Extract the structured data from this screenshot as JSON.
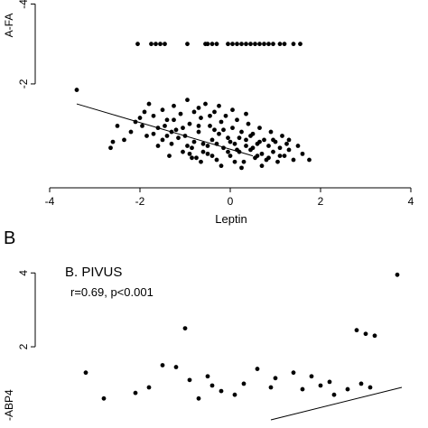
{
  "chart_data": [
    {
      "type": "scatter",
      "panel_letter": "",
      "title": "",
      "annotation": "",
      "xlabel": "Leptin",
      "ylabel": "A-FA",
      "xlim": [
        -4,
        4
      ],
      "ylim": [
        -4.1,
        0.6
      ],
      "xticks": [
        "-4",
        "-2",
        "0",
        "2",
        "4"
      ],
      "yticks": [
        {
          "value": -2,
          "label": "-2"
        },
        {
          "value": -4,
          "label": "-4"
        }
      ],
      "grid": false,
      "fit_line": {
        "x": [
          -3.4,
          0.5
        ],
        "y": [
          -1.5,
          -0.2
        ]
      },
      "points": [
        [
          -3.4,
          -1.85
        ],
        [
          -2.5,
          -0.95
        ],
        [
          -2.6,
          -0.55
        ],
        [
          -2.65,
          -0.4
        ],
        [
          -2.2,
          -0.8
        ],
        [
          -2.1,
          -1.05
        ],
        [
          -1.9,
          -1.3
        ],
        [
          -1.85,
          -0.7
        ],
        [
          -1.8,
          -1.5
        ],
        [
          -1.7,
          -1.2
        ],
        [
          -1.6,
          -0.9
        ],
        [
          -1.5,
          -1.35
        ],
        [
          -1.5,
          -0.6
        ],
        [
          -1.4,
          -1.1
        ],
        [
          -1.3,
          -0.5
        ],
        [
          -1.25,
          -1.45
        ],
        [
          -1.2,
          -0.85
        ],
        [
          -1.1,
          -1.25
        ],
        [
          -1.05,
          -0.3
        ],
        [
          -1.0,
          -0.7
        ],
        [
          -0.95,
          -1.6
        ],
        [
          -0.9,
          -1.0
        ],
        [
          -0.85,
          -0.4
        ],
        [
          -0.8,
          -1.3
        ],
        [
          -0.75,
          -0.15
        ],
        [
          -0.7,
          -0.8
        ],
        [
          -0.65,
          -1.15
        ],
        [
          -0.6,
          -0.5
        ],
        [
          -0.55,
          -1.5
        ],
        [
          -0.5,
          -0.25
        ],
        [
          -0.45,
          -0.95
        ],
        [
          -0.4,
          -0.6
        ],
        [
          -0.35,
          -1.3
        ],
        [
          -0.3,
          -0.1
        ],
        [
          -0.25,
          -0.75
        ],
        [
          -0.2,
          -1.05
        ],
        [
          -0.15,
          -0.4
        ],
        [
          -0.1,
          -1.2
        ],
        [
          -0.05,
          -0.65
        ],
        [
          0.0,
          -0.2
        ],
        [
          0.05,
          -0.9
        ],
        [
          0.1,
          -0.5
        ],
        [
          0.15,
          -1.1
        ],
        [
          0.2,
          -0.3
        ],
        [
          0.25,
          -0.8
        ],
        [
          0.3,
          -0.05
        ],
        [
          0.35,
          -0.6
        ],
        [
          0.4,
          -1.0
        ],
        [
          0.45,
          -0.35
        ],
        [
          0.5,
          -0.75
        ],
        [
          0.55,
          -0.15
        ],
        [
          0.6,
          -0.5
        ],
        [
          0.65,
          -0.9
        ],
        [
          0.7,
          -0.25
        ],
        [
          0.75,
          -0.6
        ],
        [
          0.8,
          -0.1
        ],
        [
          0.85,
          -0.45
        ],
        [
          0.9,
          -0.8
        ],
        [
          0.95,
          -0.3
        ],
        [
          1.0,
          -0.55
        ],
        [
          1.05,
          -0.05
        ],
        [
          1.1,
          -0.4
        ],
        [
          1.15,
          -0.7
        ],
        [
          1.2,
          -0.2
        ],
        [
          1.25,
          -0.5
        ],
        [
          1.3,
          -0.35
        ],
        [
          1.4,
          -0.1
        ],
        [
          1.5,
          -0.45
        ],
        [
          1.6,
          -0.25
        ],
        [
          1.75,
          -0.1
        ],
        [
          -1.35,
          -0.2
        ],
        [
          -0.65,
          -0.05
        ],
        [
          -0.2,
          0.05
        ],
        [
          0.25,
          0.1
        ],
        [
          0.7,
          0.05
        ],
        [
          -1.6,
          -0.45
        ],
        [
          -0.9,
          -0.25
        ],
        [
          -0.5,
          -0.45
        ],
        [
          0.0,
          -0.55
        ],
        [
          0.45,
          -0.7
        ],
        [
          -1.15,
          -0.65
        ],
        [
          -0.35,
          -0.85
        ],
        [
          0.15,
          -0.35
        ],
        [
          -0.8,
          -0.55
        ],
        [
          0.6,
          -0.2
        ],
        [
          -1.95,
          -0.95
        ],
        [
          -1.7,
          -0.75
        ],
        [
          -1.45,
          -0.95
        ],
        [
          -1.3,
          -0.8
        ],
        [
          -1.05,
          -0.9
        ],
        [
          -0.7,
          -1.4
        ],
        [
          -0.45,
          -1.2
        ],
        [
          -0.25,
          -1.45
        ],
        [
          0.05,
          -1.35
        ],
        [
          0.35,
          -1.25
        ],
        [
          -2.0,
          -1.15
        ],
        [
          -2.35,
          -0.6
        ],
        [
          -0.95,
          -0.45
        ],
        [
          -0.6,
          -0.3
        ],
        [
          -0.05,
          -0.3
        ],
        [
          0.35,
          -0.45
        ],
        [
          0.85,
          -0.15
        ],
        [
          1.1,
          -0.2
        ],
        [
          -1.25,
          -1.1
        ],
        [
          -0.3,
          -0.5
        ],
        [
          -0.7,
          -0.95
        ],
        [
          0.2,
          -0.65
        ],
        [
          0.5,
          -0.4
        ],
        [
          -0.15,
          -0.85
        ],
        [
          0.95,
          -0.6
        ],
        [
          -1.4,
          -0.7
        ],
        [
          -0.85,
          -0.15
        ],
        [
          -0.4,
          -0.2
        ],
        [
          0.1,
          -0.05
        ],
        [
          0.65,
          -0.55
        ],
        [
          1.3,
          -0.6
        ],
        [
          -2.05,
          -3.0
        ],
        [
          -1.75,
          -3.0
        ],
        [
          -1.65,
          -3.0
        ],
        [
          -1.55,
          -3.0
        ],
        [
          -1.45,
          -3.0
        ],
        [
          -0.95,
          -3.0
        ],
        [
          -0.55,
          -3.0
        ],
        [
          -0.5,
          -3.0
        ],
        [
          -0.4,
          -3.0
        ],
        [
          -0.3,
          -3.0
        ],
        [
          -0.05,
          -3.0
        ],
        [
          0.05,
          -3.0
        ],
        [
          0.15,
          -3.0
        ],
        [
          0.25,
          -3.0
        ],
        [
          0.35,
          -3.0
        ],
        [
          0.45,
          -3.0
        ],
        [
          0.55,
          -3.0
        ],
        [
          0.65,
          -3.0
        ],
        [
          0.75,
          -3.0
        ],
        [
          0.85,
          -3.0
        ],
        [
          0.95,
          -3.0
        ],
        [
          1.1,
          -3.0
        ],
        [
          1.2,
          -3.0
        ],
        [
          1.4,
          -3.0
        ],
        [
          1.55,
          -3.0
        ]
      ]
    },
    {
      "type": "scatter",
      "panel_letter": "B",
      "title": "B. PIVUS",
      "annotation": "r=0.69, p<0.001",
      "xlabel": "",
      "ylabel": "-ABP4",
      "xlim": [
        -4,
        4
      ],
      "ylim": [
        -0.2,
        4.3
      ],
      "xticks": [],
      "yticks": [
        {
          "value": 4,
          "label": "4"
        },
        {
          "value": 2,
          "label": "2"
        }
      ],
      "grid": false,
      "fit_line": {
        "x": [
          0.9,
          3.8
        ],
        "y": [
          0.02,
          0.9
        ]
      },
      "points": [
        [
          3.7,
          3.95
        ],
        [
          2.8,
          2.45
        ],
        [
          3.0,
          2.35
        ],
        [
          3.2,
          2.3
        ],
        [
          -1.0,
          2.5
        ],
        [
          -1.5,
          1.5
        ],
        [
          -1.2,
          1.45
        ],
        [
          -0.5,
          1.2
        ],
        [
          -0.9,
          1.1
        ],
        [
          -0.4,
          0.95
        ],
        [
          -0.2,
          0.8
        ],
        [
          0.3,
          1.0
        ],
        [
          0.6,
          1.4
        ],
        [
          1.0,
          1.15
        ],
        [
          1.4,
          1.3
        ],
        [
          1.8,
          1.2
        ],
        [
          2.0,
          0.95
        ],
        [
          2.3,
          0.7
        ],
        [
          2.6,
          0.85
        ],
        [
          2.9,
          1.0
        ],
        [
          3.1,
          0.9
        ],
        [
          -2.1,
          0.75
        ],
        [
          -3.2,
          1.3
        ],
        [
          -2.8,
          0.6
        ],
        [
          -1.8,
          0.9
        ],
        [
          0.9,
          0.9
        ],
        [
          1.6,
          0.85
        ],
        [
          2.2,
          1.05
        ],
        [
          0.1,
          0.7
        ],
        [
          -0.7,
          0.6
        ]
      ]
    }
  ]
}
